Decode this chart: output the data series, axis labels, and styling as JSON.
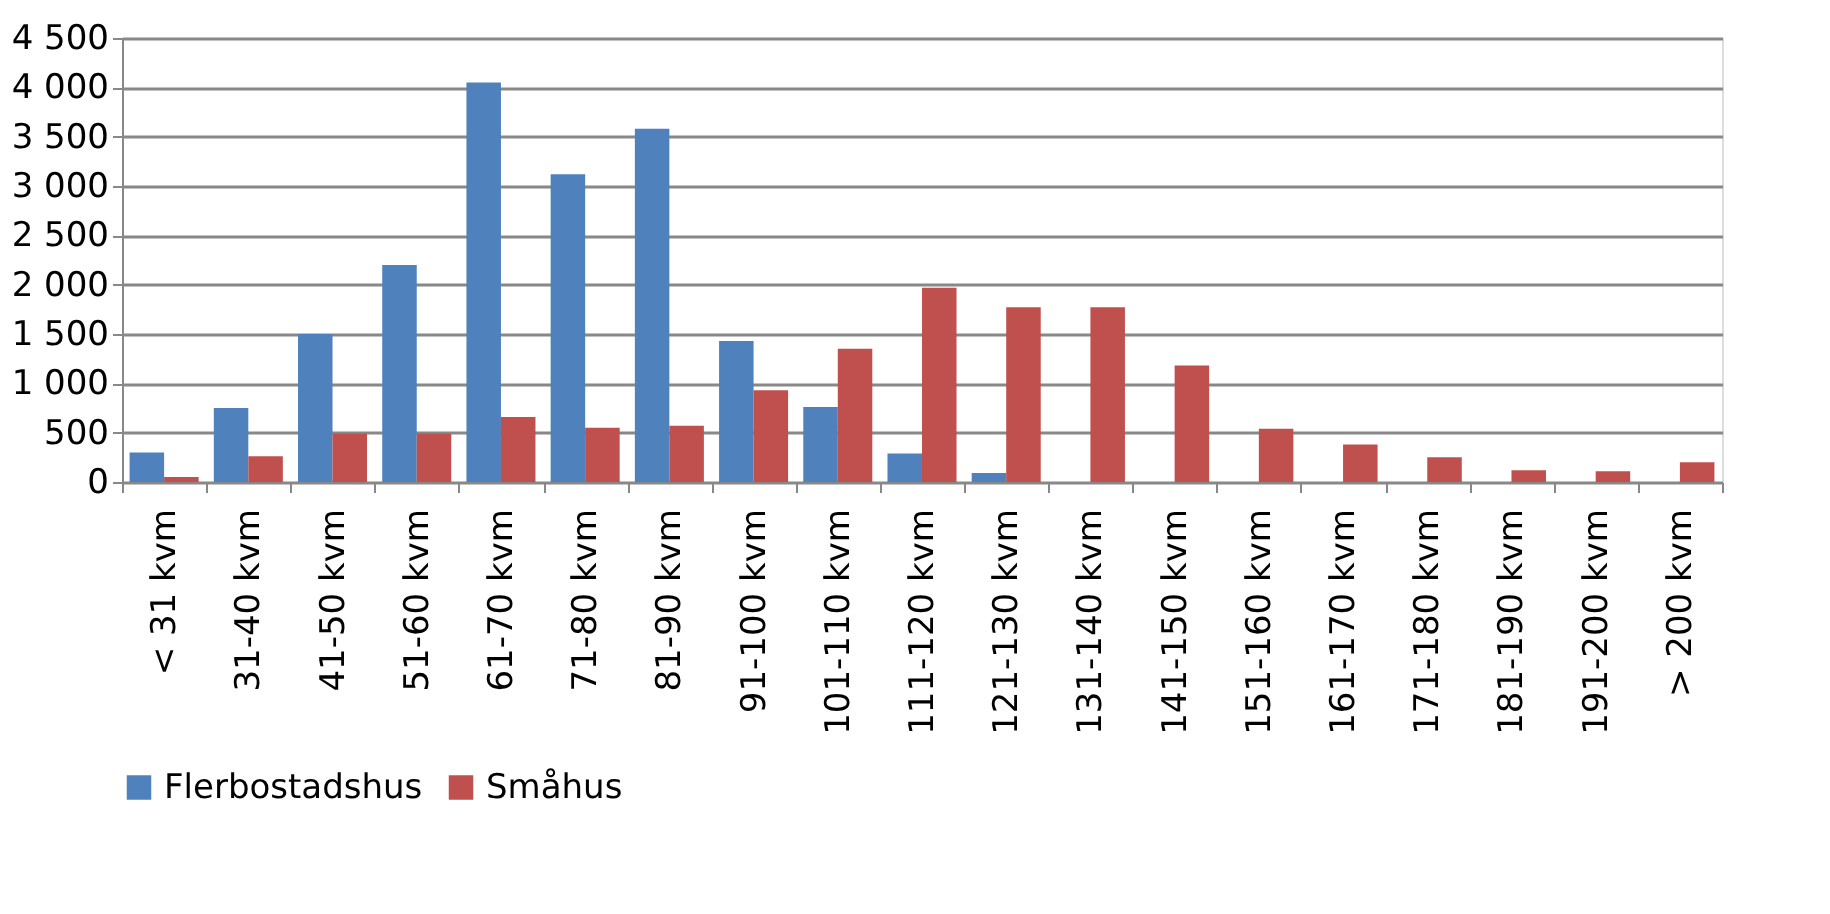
{
  "chart_data": {
    "type": "bar",
    "categories": [
      "< 31 kvm",
      "31-40 kvm",
      "41-50 kvm",
      "51-60 kvm",
      "61-70 kvm",
      "71-80 kvm",
      "81-90 kvm",
      "91-100 kvm",
      "101-110 kvm",
      "111-120 kvm",
      "121-130 kvm",
      "131-140 kvm",
      "141-150 kvm",
      "151-160 kvm",
      "161-170 kvm",
      "171-180 kvm",
      "181-190 kvm",
      "191-200 kvm",
      "> 200 kvm"
    ],
    "series": [
      {
        "name": "Flerbostadshus",
        "color": "#4f81bd",
        "values": [
          300,
          750,
          1500,
          2200,
          4050,
          3120,
          3580,
          1430,
          760,
          290,
          90,
          null,
          null,
          0,
          0,
          0,
          0,
          0,
          0
        ]
      },
      {
        "name": "Småhus",
        "color": "#c0504d",
        "values": [
          50,
          260,
          490,
          490,
          660,
          550,
          570,
          930,
          1350,
          1970,
          1770,
          1770,
          1180,
          540,
          380,
          250,
          120,
          110,
          200
        ]
      }
    ],
    "ylim": [
      0,
      4500
    ],
    "yticks": [
      0,
      500,
      {
        "value": 1000,
        "label": "1 000"
      },
      {
        "value": 1500,
        "label": "1 500"
      },
      {
        "value": 2000,
        "label": "2 000"
      },
      {
        "value": 2500,
        "label": "2 500"
      },
      {
        "value": 3000,
        "label": "3 000"
      },
      {
        "value": 3500,
        "label": "3 500"
      },
      {
        "value": 4000,
        "label": "4 000"
      },
      {
        "value": 4500,
        "label": "4 500"
      }
    ],
    "grid": "y",
    "legend": "bottom"
  }
}
